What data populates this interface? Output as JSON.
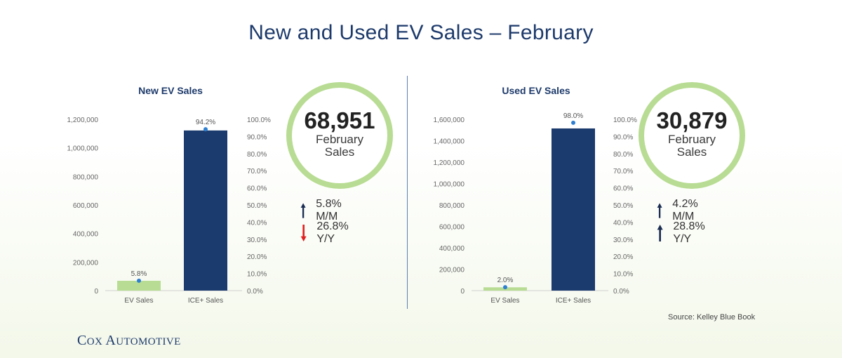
{
  "title": "New and Used EV Sales – February",
  "source": "Source: Kelley Blue Book",
  "logo": {
    "cox_c": "C",
    "cox_rest": "OX ",
    "auto_a": "A",
    "auto_rest": "UTOMOTIVE"
  },
  "colors": {
    "ev_bar": "#b8dc93",
    "ice_bar": "#1b3a6d",
    "dot": "#2e7fd1",
    "up_arrow": "#1b2d52",
    "down_arrow": "#e02020",
    "ring": "#b8dc93"
  },
  "panels": [
    {
      "circle": {
        "value": "68,951",
        "line1": "February",
        "line2": "Sales"
      },
      "stats": [
        {
          "direction": "up",
          "text": "5.8% M/M"
        },
        {
          "direction": "down",
          "text": "26.8% Y/Y"
        }
      ],
      "chart_data": {
        "type": "bar",
        "title": "New EV Sales",
        "categories": [
          "EV Sales",
          "ICE+ Sales"
        ],
        "values": [
          68951,
          1122000
        ],
        "share_pct": [
          5.8,
          94.2
        ],
        "share_labels": [
          "5.8%",
          "94.2%"
        ],
        "ylim": [
          0,
          1200000
        ],
        "y_ticks": [
          "0",
          "200,000",
          "400,000",
          "600,000",
          "800,000",
          "1,000,000",
          "1,200,000"
        ],
        "y2lim": [
          0,
          100
        ],
        "y2_ticks": [
          "0.0%",
          "10.0%",
          "20.0%",
          "30.0%",
          "40.0%",
          "50.0%",
          "60.0%",
          "70.0%",
          "80.0%",
          "90.0%",
          "100.0%"
        ],
        "grid": false
      }
    },
    {
      "circle": {
        "value": "30,879",
        "line1": "February",
        "line2": "Sales"
      },
      "stats": [
        {
          "direction": "up",
          "text": "4.2% M/M"
        },
        {
          "direction": "up",
          "text": "28.8% Y/Y"
        }
      ],
      "chart_data": {
        "type": "bar",
        "title": "Used EV Sales",
        "categories": [
          "EV Sales",
          "ICE+ Sales"
        ],
        "values": [
          30879,
          1515000
        ],
        "share_pct": [
          2.0,
          98.0
        ],
        "share_labels": [
          "2.0%",
          "98.0%"
        ],
        "ylim": [
          0,
          1600000
        ],
        "y_ticks": [
          "0",
          "200,000",
          "400,000",
          "600,000",
          "800,000",
          "1,000,000",
          "1,200,000",
          "1,400,000",
          "1,600,000"
        ],
        "y2lim": [
          0,
          100
        ],
        "y2_ticks": [
          "0.0%",
          "10.0%",
          "20.0%",
          "30.0%",
          "40.0%",
          "50.0%",
          "60.0%",
          "70.0%",
          "80.0%",
          "90.0%",
          "100.0%"
        ],
        "grid": false
      }
    }
  ]
}
